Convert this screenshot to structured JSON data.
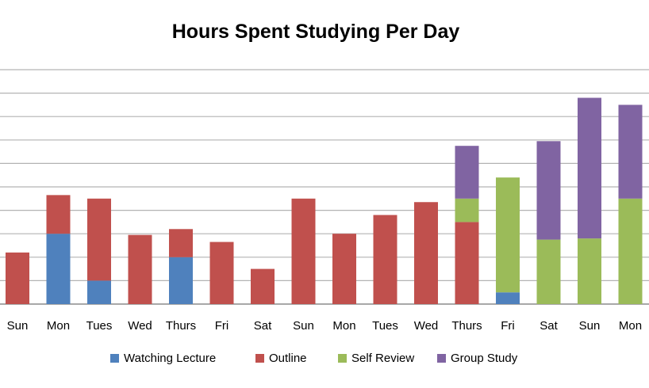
{
  "chart_data": {
    "type": "bar",
    "stacked": true,
    "title": "Hours Spent Studying Per Day",
    "xlabel": "",
    "ylabel": "",
    "ylim": [
      0,
      10
    ],
    "grid": true,
    "legend_position": "bottom",
    "categories": [
      "Sun",
      "Mon",
      "Tues",
      "Wed",
      "Thurs",
      "Fri",
      "Sat",
      "Sun",
      "Mon",
      "Tues",
      "Wed",
      "Thurs",
      "Fri",
      "Sat",
      "Sun",
      "Mon"
    ],
    "series": [
      {
        "name": "Watching Lecture",
        "color": "#4f81bd",
        "values": [
          0,
          3,
          1,
          0,
          2,
          0,
          0,
          0,
          0,
          0,
          0,
          0,
          0.5,
          0,
          0,
          0
        ]
      },
      {
        "name": "Outline",
        "color": "#c0504d",
        "values": [
          2.2,
          1.65,
          3.5,
          2.95,
          1.2,
          2.65,
          1.5,
          4.5,
          3.0,
          3.8,
          4.35,
          3.5,
          0,
          0,
          0,
          0
        ]
      },
      {
        "name": "Self Review",
        "color": "#9bbb59",
        "values": [
          0,
          0,
          0,
          0,
          0,
          0,
          0,
          0,
          0,
          0,
          0,
          1.0,
          4.9,
          2.75,
          2.8,
          4.5
        ]
      },
      {
        "name": "Group Study",
        "color": "#8064a2",
        "values": [
          0,
          0,
          0,
          0,
          0,
          0,
          0,
          0,
          0,
          0,
          0,
          2.25,
          0,
          4.2,
          6.0,
          4.0
        ]
      }
    ]
  }
}
